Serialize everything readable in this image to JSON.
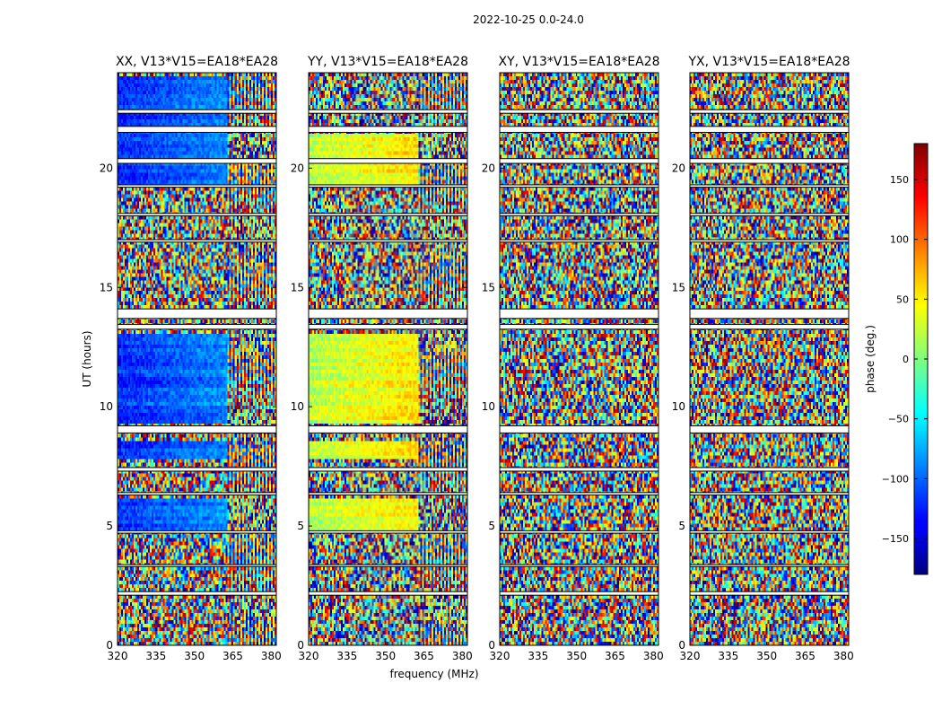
{
  "figure": {
    "suptitle": "2022-10-25 0.0-24.0",
    "xlabel": "frequency (MHz)",
    "ylabel": "UT (hours)",
    "colorbar_label": "phase (deg.)"
  },
  "chart_data": {
    "type": "heatmap",
    "title": "2022-10-25 0.0-24.0",
    "xlabel": "frequency (MHz)",
    "ylabel": "UT (hours)",
    "xlim": [
      320,
      382
    ],
    "ylim": [
      0,
      24
    ],
    "x_ticks": [
      320,
      335,
      350,
      365,
      380
    ],
    "y_ticks": [
      0,
      5,
      10,
      15,
      20
    ],
    "grid": false,
    "colormap": "jet",
    "colorbar": {
      "label": "phase (deg.)",
      "range": [
        -180,
        180
      ],
      "ticks": [
        -150,
        -100,
        -50,
        0,
        50,
        100,
        150
      ],
      "placement": "right"
    },
    "panels": [
      {
        "title": "XX, V13*V15=EA18*EA28",
        "polarization": "XX",
        "coherent_until_mhz": 363,
        "coherent_bands": [
          [
            9.3,
            13.0
          ],
          [
            4.8,
            6.2
          ],
          [
            7.8,
            8.5
          ],
          [
            19.2,
            23.9
          ]
        ],
        "base_phase": -120
      },
      {
        "title": "YY, V13*V15=EA18*EA28",
        "polarization": "YY",
        "coherent_until_mhz": 363,
        "coherent_bands": [
          [
            9.3,
            13.0
          ],
          [
            4.8,
            6.2
          ],
          [
            7.8,
            8.5
          ],
          [
            19.2,
            21.5
          ]
        ],
        "base_phase": 20
      },
      {
        "title": "XY, V13*V15=EA18*EA28",
        "polarization": "XY",
        "coherent_until_mhz": 0,
        "coherent_bands": [],
        "base_phase": 0
      },
      {
        "title": "YX, V13*V15=EA18*EA28",
        "polarization": "YX",
        "coherent_until_mhz": 0,
        "coherent_bands": [],
        "base_phase": 0
      }
    ],
    "flagged_ut_ranges": [
      [
        2.1,
        2.25
      ],
      [
        3.3,
        3.38
      ],
      [
        4.7,
        4.8
      ],
      [
        6.3,
        6.4
      ],
      [
        7.3,
        7.45
      ],
      [
        8.9,
        9.2
      ],
      [
        13.25,
        13.45
      ],
      [
        13.7,
        14.1
      ],
      [
        16.9,
        17.0
      ],
      [
        18.0,
        18.1
      ],
      [
        19.2,
        19.3
      ],
      [
        20.2,
        20.4
      ],
      [
        21.5,
        21.75
      ],
      [
        22.3,
        22.45
      ]
    ]
  },
  "colors": {
    "flag_white": "#ffffff",
    "flag_black": "#000000",
    "axes_border": "#000000"
  }
}
